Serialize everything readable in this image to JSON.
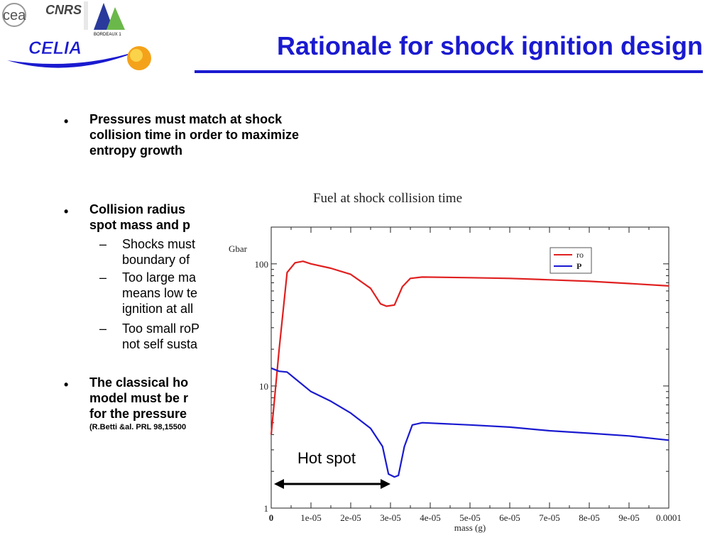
{
  "header": {
    "title": "Rationale for shock ignition design",
    "logos": {
      "cea": "cea",
      "cnrs": "CNRS",
      "bordeaux": "BORDEAUX 1",
      "celia": "CELIA"
    }
  },
  "bullets": [
    {
      "text": "Pressures must match at shock\ncollision time in order to maximize\nentropy growth"
    },
    {
      "text": "Collision radius\nspot mass and p"
    },
    {
      "text": "The classical ho\nmodel must be r\nfor the pressure",
      "ref": "(R.Betti &al. PRL 98,15500"
    }
  ],
  "sub_bullets": [
    {
      "text": "Shocks must\nboundary of"
    },
    {
      "text": "Too large ma\nmeans low te\nignition at all"
    },
    {
      "text": "Too small roP\nnot self susta"
    }
  ],
  "colors": {
    "title": "#1a1ad0",
    "ro": "#e02020",
    "p": "#1a1ad0"
  },
  "chart_data": {
    "type": "line",
    "title": "Fuel at shock collision time",
    "xlabel": "mass (g)",
    "ylabel": "Gbar",
    "yscale": "log",
    "xlim": [
      0,
      0.0001
    ],
    "ylim": [
      1,
      200
    ],
    "x_tick_labels": [
      "0",
      "1e-05",
      "2e-05",
      "3e-05",
      "4e-05",
      "5e-05",
      "6e-05",
      "7e-05",
      "8e-05",
      "9e-05",
      "0.0001"
    ],
    "y_tick_labels": [
      "1",
      "10",
      "100"
    ],
    "legend_position": "top-right",
    "series": [
      {
        "name": "ro",
        "x": [
          0,
          2e-06,
          4e-06,
          6e-06,
          8e-06,
          1e-05,
          1.5e-05,
          2e-05,
          2.5e-05,
          2.75e-05,
          2.9e-05,
          3.1e-05,
          3.3e-05,
          3.5e-05,
          3.8e-05,
          5e-05,
          6e-05,
          7e-05,
          8e-05,
          9e-05,
          0.0001
        ],
        "y": [
          4,
          20,
          85,
          102,
          105,
          100,
          92,
          82,
          63,
          47,
          45,
          46,
          65,
          76,
          78,
          77,
          76,
          74,
          72,
          69,
          66
        ]
      },
      {
        "name": "P",
        "x": [
          0,
          2e-06,
          4e-06,
          6e-06,
          1e-05,
          1.5e-05,
          2e-05,
          2.5e-05,
          2.8e-05,
          2.95e-05,
          3.1e-05,
          3.2e-05,
          3.35e-05,
          3.55e-05,
          3.8e-05,
          5e-05,
          6e-05,
          7e-05,
          8e-05,
          9e-05,
          0.0001
        ],
        "y": [
          14,
          13.2,
          13,
          11.5,
          9,
          7.5,
          6,
          4.5,
          3.2,
          1.9,
          1.8,
          1.85,
          3.2,
          4.8,
          5,
          4.8,
          4.6,
          4.3,
          4.1,
          3.9,
          3.6
        ]
      }
    ],
    "annotations": [
      {
        "text": "Hot spot",
        "x_range": [
          0,
          3e-05
        ]
      }
    ]
  }
}
